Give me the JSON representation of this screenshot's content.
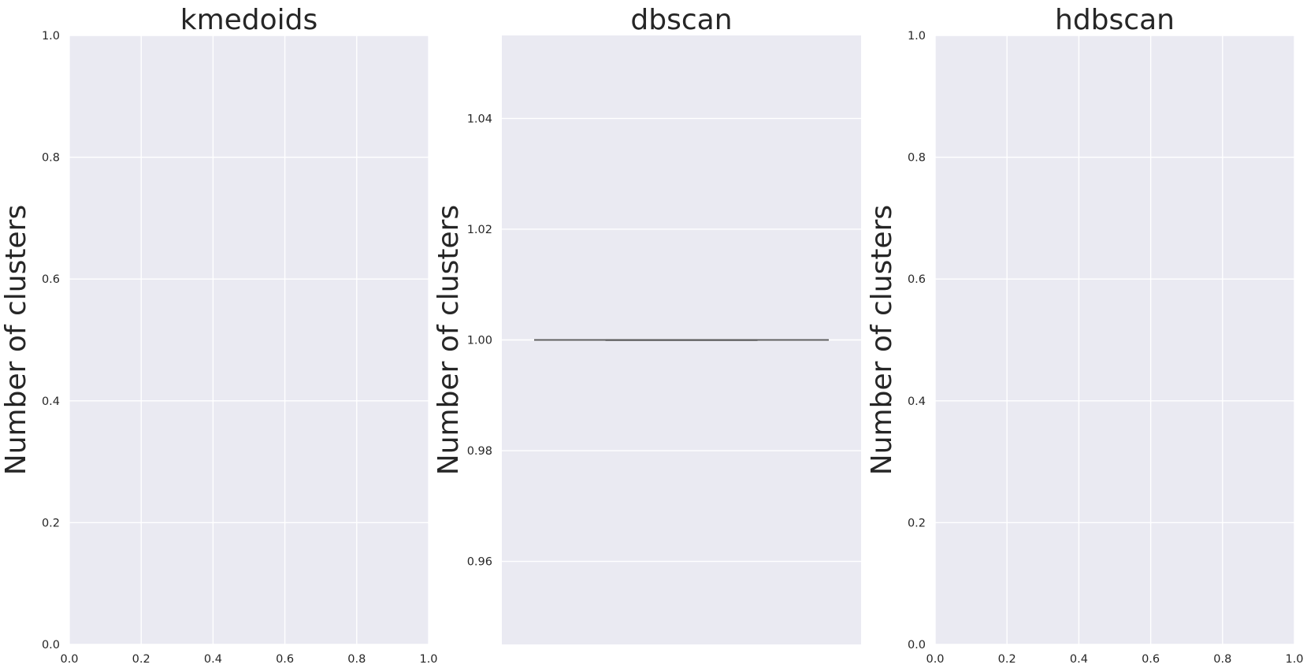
{
  "chart_data": [
    {
      "type": "box",
      "title": "kmedoids",
      "xlabel": "",
      "ylabel": "Number of clusters",
      "xlim": [
        0,
        1
      ],
      "ylim": [
        0,
        1
      ],
      "xticks": [
        "0.0",
        "0.2",
        "0.4",
        "0.6",
        "0.8",
        "1.0"
      ],
      "yticks": [
        "0.0",
        "0.2",
        "0.4",
        "0.6",
        "0.8",
        "1.0"
      ],
      "grid": true,
      "boxes": []
    },
    {
      "type": "box",
      "title": "dbscan",
      "xlabel": "",
      "ylabel": "Number of clusters",
      "ylim": [
        0.945,
        1.055
      ],
      "yticks": [
        "0.96",
        "0.98",
        "1.00",
        "1.02",
        "1.04"
      ],
      "grid": true,
      "boxes": [
        {
          "whisker_low": 1.0,
          "q1": 1.0,
          "median": 1.0,
          "q3": 1.0,
          "whisker_high": 1.0,
          "color": "#5a5a5a"
        }
      ]
    },
    {
      "type": "box",
      "title": "hdbscan",
      "xlabel": "",
      "ylabel": "Number of clusters",
      "xlim": [
        0,
        1
      ],
      "ylim": [
        0,
        1
      ],
      "xticks": [
        "0.0",
        "0.2",
        "0.4",
        "0.6",
        "0.8",
        "1.0"
      ],
      "yticks": [
        "0.0",
        "0.2",
        "0.4",
        "0.6",
        "0.8",
        "1.0"
      ],
      "grid": true,
      "boxes": []
    }
  ]
}
